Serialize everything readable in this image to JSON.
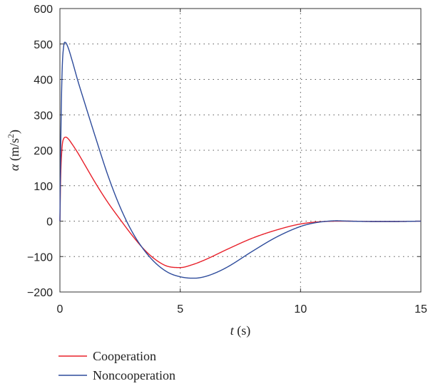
{
  "chart_data": {
    "type": "line",
    "xlabel": {
      "var": "t",
      "unit": " (s)"
    },
    "ylabel": {
      "var": "α",
      "unit_pre": " (m/s",
      "unit_sup": "2",
      "unit_post": ")"
    },
    "xlim": [
      0,
      15
    ],
    "ylim": [
      -200,
      600
    ],
    "x_ticks": [
      0,
      5,
      10,
      15
    ],
    "y_ticks": [
      600,
      500,
      400,
      300,
      200,
      100,
      0,
      -100,
      -200
    ],
    "x_tick_labels": [
      "0",
      "5",
      "10",
      "15"
    ],
    "y_tick_labels": [
      "600",
      "500",
      "400",
      "300",
      "200",
      "100",
      "0",
      "−100",
      "−200"
    ],
    "grid": "dotted",
    "legend_position": "bottom-left, below plot",
    "series": [
      {
        "name": "Cooperation",
        "color": "#e8202a",
        "x": [
          0,
          0.03,
          0.08,
          0.15,
          0.25,
          0.35,
          0.5,
          0.75,
          1,
          1.5,
          2,
          2.5,
          3,
          3.5,
          4,
          4.5,
          5,
          5.5,
          6,
          7,
          8,
          9,
          10,
          11,
          12,
          13,
          14,
          15
        ],
        "y": [
          0,
          120,
          200,
          232,
          237,
          232,
          218,
          192,
          163,
          105,
          52,
          5,
          -40,
          -80,
          -110,
          -128,
          -131,
          -123,
          -110,
          -78,
          -48,
          -25,
          -8,
          -1,
          0,
          -1,
          -1,
          0
        ]
      },
      {
        "name": "Noncooperation",
        "color": "#2d4b9b",
        "x": [
          0,
          0.03,
          0.06,
          0.1,
          0.15,
          0.2,
          0.25,
          0.35,
          0.5,
          0.75,
          1,
          1.5,
          2,
          2.5,
          3,
          3.5,
          4,
          4.5,
          5,
          5.5,
          5.6,
          6,
          6.5,
          7,
          8,
          9,
          10,
          10.5,
          11,
          11.5,
          12,
          13,
          14,
          15
        ],
        "y": [
          0,
          190,
          330,
          440,
          490,
          505,
          503,
          488,
          455,
          395,
          340,
          232,
          128,
          40,
          -30,
          -82,
          -120,
          -145,
          -157,
          -161,
          -161,
          -157,
          -145,
          -128,
          -85,
          -45,
          -15,
          -6,
          -1,
          1,
          0,
          -1,
          -1,
          0
        ]
      }
    ]
  }
}
